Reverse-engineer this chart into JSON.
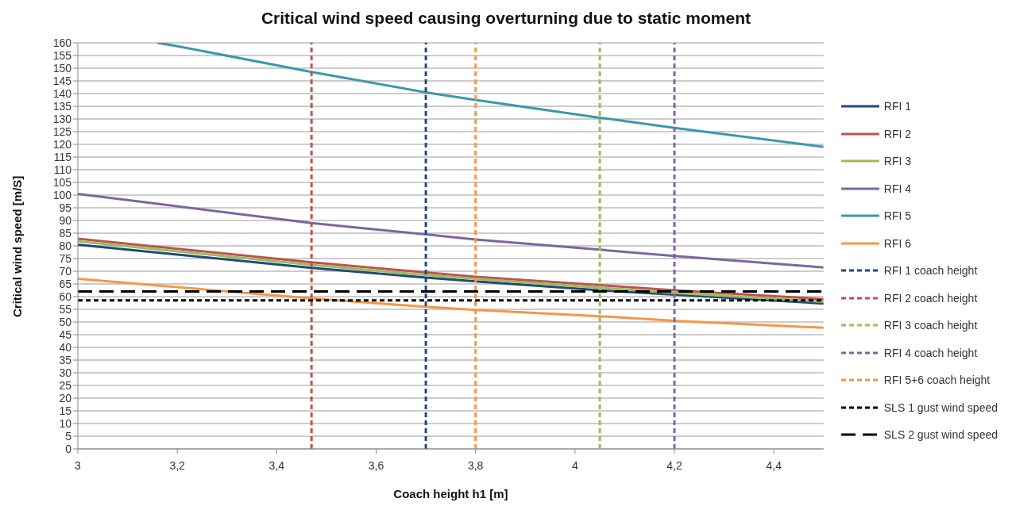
{
  "chart_data": {
    "type": "line",
    "title": "Critical wind speed causing overturning due to static moment",
    "xlabel": "Coach height h1 [m]",
    "ylabel": "Critical wind speed [m/S]",
    "x": [
      3,
      3.47,
      3.7,
      3.8,
      4.05,
      4.2,
      4.5
    ],
    "series": [
      {
        "name": "RFI 1",
        "color": "#1f497d",
        "values": [
          80.5,
          71.3,
          67.5,
          66,
          62.5,
          60.8,
          57.3
        ]
      },
      {
        "name": "RFI 2",
        "color": "#c0504d",
        "values": [
          82.8,
          73.5,
          69.5,
          67.8,
          64.5,
          62.5,
          59
        ]
      },
      {
        "name": "RFI 3",
        "color": "#9bbb59",
        "values": [
          81.8,
          72.5,
          68.5,
          67,
          63.5,
          61.5,
          58
        ]
      },
      {
        "name": "RFI 4",
        "color": "#8064a2",
        "values": [
          100.5,
          89,
          84.5,
          82.5,
          78.5,
          76,
          71.5
        ]
      },
      {
        "name": "RFI 5",
        "color": "#3d97ae",
        "x": [
          3.16,
          3.2,
          3.47,
          3.7,
          3.8,
          4.05,
          4.2,
          4.5
        ],
        "values": [
          160,
          158.7,
          148.5,
          140.5,
          137.5,
          130.5,
          126.5,
          119
        ]
      },
      {
        "name": "RFI 6",
        "color": "#f79646",
        "values": [
          67,
          59.3,
          56,
          54.8,
          52.3,
          50.5,
          47.7
        ]
      },
      {
        "name": "RFI 1 coach height",
        "color": "#1f497d",
        "line_style": "dotted",
        "x": [
          3.7,
          3.7
        ],
        "values": [
          0,
          160
        ]
      },
      {
        "name": "RFI 2 coach height",
        "color": "#c0504d",
        "line_style": "dotted",
        "x": [
          3.47,
          3.47
        ],
        "values": [
          0,
          160
        ]
      },
      {
        "name": "RFI 3 coach height",
        "color": "#9bbb59",
        "line_style": "dotted",
        "x": [
          4.05,
          4.05
        ],
        "values": [
          0,
          160
        ]
      },
      {
        "name": "RFI 4 coach height",
        "color": "#8064a2",
        "line_style": "dotted",
        "x": [
          4.2,
          4.2
        ],
        "values": [
          0,
          160
        ]
      },
      {
        "name": "RFI 5+6 coach height",
        "color": "#f79646",
        "line_style": "dotted",
        "x": [
          3.8,
          3.8
        ],
        "values": [
          0,
          160
        ]
      },
      {
        "name": "SLS 1 gust wind speed",
        "color": "#000000",
        "line_style": "dotted",
        "x": [
          3,
          4.5
        ],
        "values": [
          58.5,
          58.5
        ]
      },
      {
        "name": "SLS 2 gust wind speed",
        "color": "#000000",
        "line_style": "dashed",
        "x": [
          3,
          4.5
        ],
        "values": [
          62,
          62
        ]
      }
    ],
    "xlim": [
      3,
      4.5
    ],
    "xticks": [
      3,
      {
        "value": 3.2,
        "label": "3,2"
      },
      {
        "value": 3.4,
        "label": "3,4"
      },
      {
        "value": 3.6,
        "label": "3,6"
      },
      {
        "value": 3.8,
        "label": "3,8"
      },
      4,
      {
        "value": 4.2,
        "label": "4,2"
      },
      {
        "value": 4.4,
        "label": "4,4"
      }
    ],
    "ylim": [
      0,
      160
    ],
    "yticks": [
      0,
      5,
      10,
      15,
      20,
      25,
      30,
      35,
      40,
      45,
      50,
      55,
      60,
      65,
      70,
      75,
      80,
      85,
      90,
      95,
      100,
      105,
      110,
      115,
      120,
      125,
      130,
      135,
      140,
      145,
      150,
      155,
      160
    ],
    "grid": "y",
    "legend": "right",
    "marker": "none",
    "line_style": "solid"
  }
}
